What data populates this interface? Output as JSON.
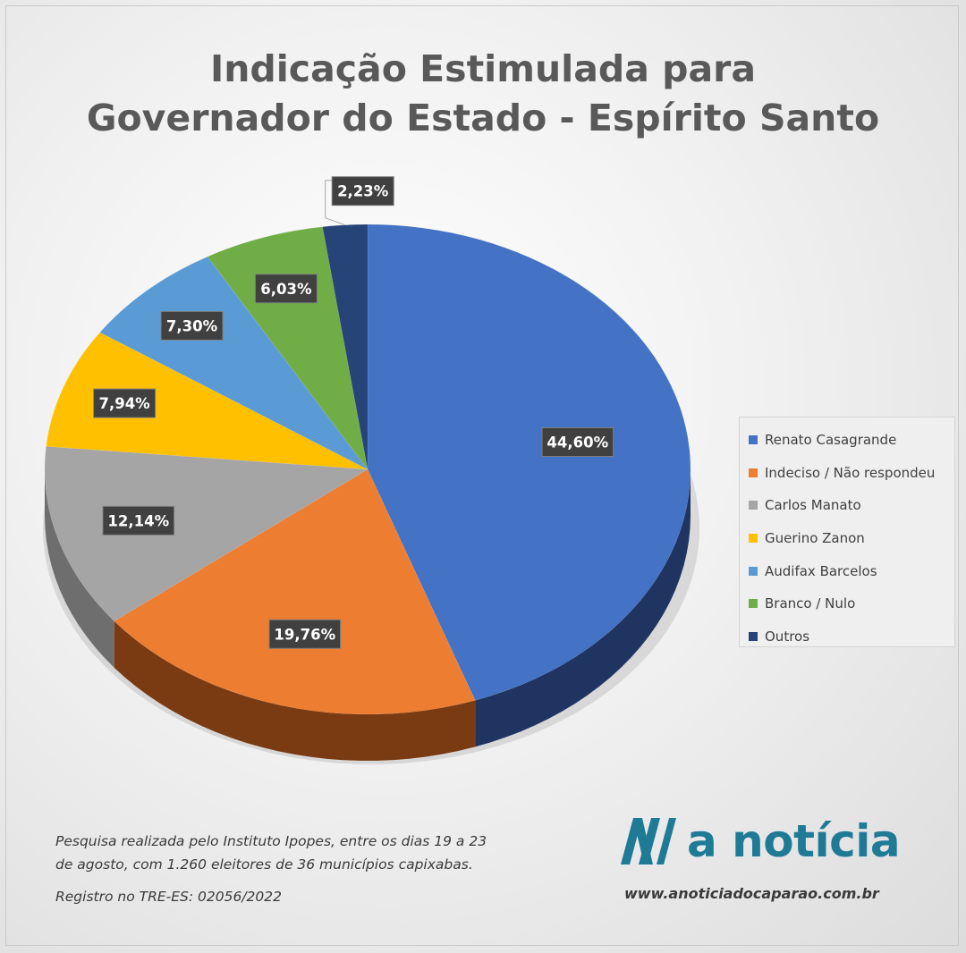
{
  "chart_data": {
    "type": "pie",
    "title_lines": [
      "Indicação Estimulada para",
      "Governador do Estado - Espírito Santo"
    ],
    "slices": [
      {
        "name": "Renato Casagrande",
        "value": 44.6,
        "label": "44,60%",
        "color": "#4472C4",
        "side_color": "#1F3461"
      },
      {
        "name": "Indeciso / Não respondeu",
        "value": 19.76,
        "label": "19,76%",
        "color": "#ED7D31",
        "side_color": "#7A3A12"
      },
      {
        "name": "Carlos Manato",
        "value": 12.14,
        "label": "12,14%",
        "color": "#A5A5A5",
        "side_color": "#6E6E6E"
      },
      {
        "name": "Guerino Zanon",
        "value": 7.94,
        "label": "7,94%",
        "color": "#FFC000",
        "side_color": "#8C6A00"
      },
      {
        "name": "Audifax Barcelos",
        "value": 7.3,
        "label": "7,30%",
        "color": "#5B9BD5",
        "side_color": "#2E5D87"
      },
      {
        "name": "Branco / Nulo",
        "value": 6.03,
        "label": "6,03%",
        "color": "#70AD47",
        "side_color": "#3D6526"
      },
      {
        "name": "Outros",
        "value": 2.23,
        "label": "2,23%",
        "color": "#264478",
        "side_color": "#13223C"
      }
    ],
    "legend_position": "right"
  },
  "footnote": {
    "line1": "Pesquisa realizada pelo Instituto Ipopes, entre os dias 19 a 23",
    "line2": "de agosto, com 1.260 eleitores de 36 municípios capixabas.",
    "registry": "Registro no TRE-ES: 02056/2022"
  },
  "brand": {
    "name": "a notícia",
    "url": "www.anoticiadocaparao.com.br",
    "logo_color": "#1F7A96"
  }
}
